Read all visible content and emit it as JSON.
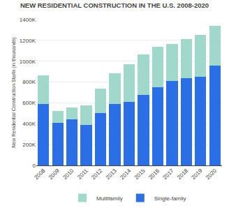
{
  "chart_data": {
    "type": "bar",
    "stacked": true,
    "title": "NEW RESIDENTIAL CONSTRUCTION IN THE U.S. 2008-2020",
    "ylabel": "New Residential Construction Starts (in thousands)",
    "categories": [
      "2008",
      "2009",
      "2010",
      "2011",
      "2012",
      "2013",
      "2014",
      "2015",
      "2016",
      "2017",
      "2018",
      "2019",
      "2020"
    ],
    "series": [
      {
        "name": "Single-family",
        "color": "#2b6fe6",
        "values": [
          590,
          410,
          440,
          390,
          500,
          590,
          610,
          680,
          750,
          810,
          840,
          850,
          960
        ]
      },
      {
        "name": "Multifamily",
        "color": "#a0d9cc",
        "values": [
          275,
          115,
          115,
          185,
          235,
          295,
          360,
          385,
          390,
          355,
          375,
          400,
          380
        ]
      }
    ],
    "ylim": [
      0,
      1400
    ],
    "yticks": [
      0,
      {
        "value": 200,
        "label": "200K"
      },
      {
        "value": 400,
        "label": "400K"
      },
      {
        "value": 600,
        "label": "600K"
      },
      {
        "value": 800,
        "label": "800K"
      },
      {
        "value": 1000,
        "label": "1000K"
      },
      {
        "value": 1200,
        "label": "1200K"
      },
      {
        "value": 1400,
        "label": "1400K"
      }
    ],
    "grid": true,
    "legend": "bottom"
  }
}
